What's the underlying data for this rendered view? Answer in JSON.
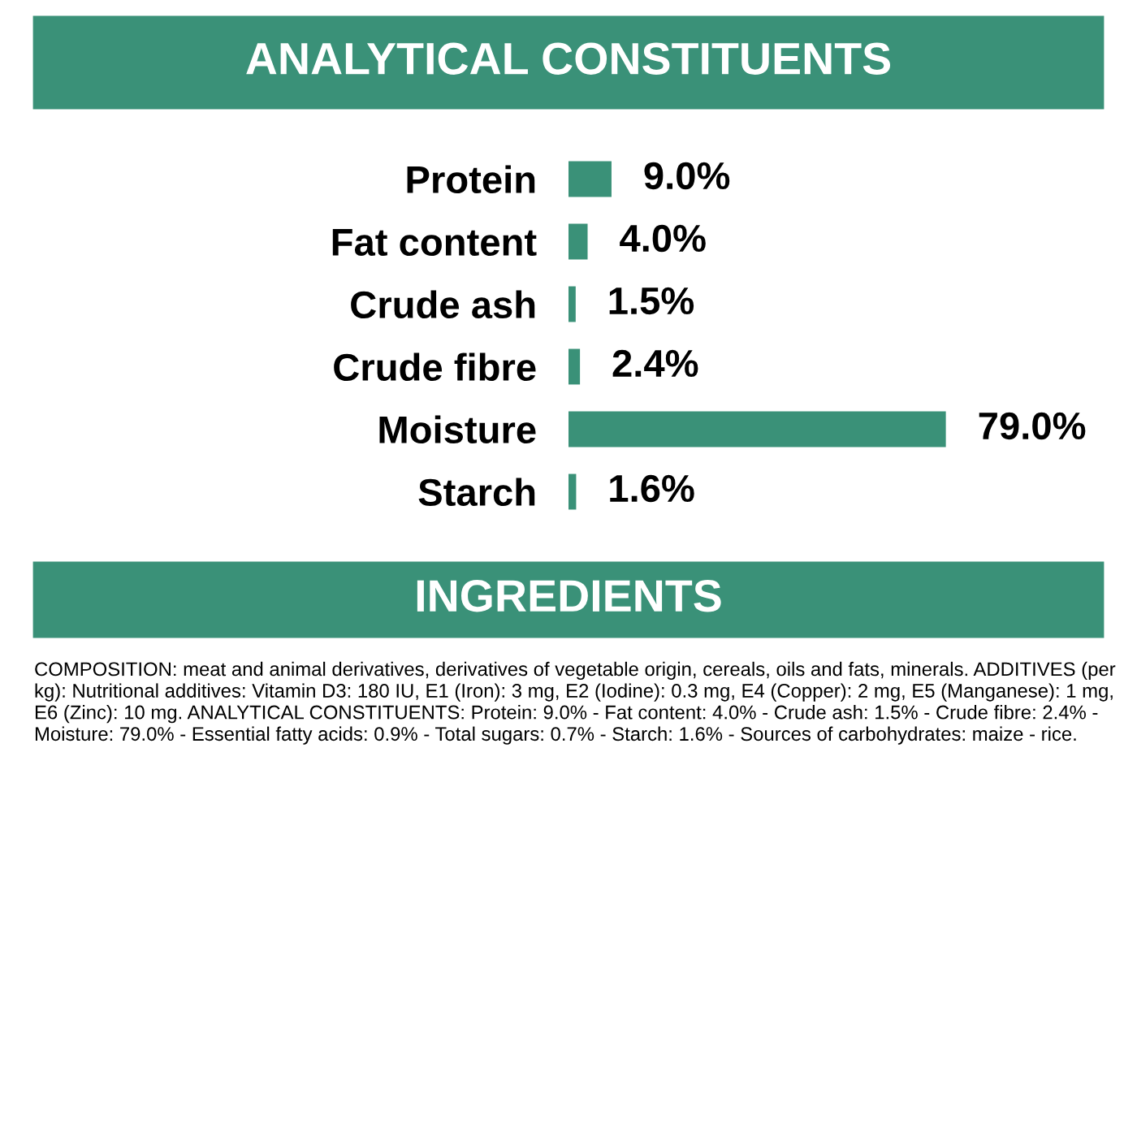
{
  "chart_data": {
    "type": "bar",
    "orientation": "horizontal",
    "title": "ANALYTICAL CONSTITUENTS",
    "categories": [
      "Protein",
      "Fat content",
      "Crude ash",
      "Crude fibre",
      "Moisture",
      "Starch"
    ],
    "values": [
      9.0,
      4.0,
      1.5,
      2.4,
      79.0,
      1.6
    ],
    "value_labels": [
      "9.0%",
      "4.0%",
      "1.5%",
      "2.4%",
      "79.0%",
      "1.6%"
    ],
    "color": "#3a9178",
    "annotations": [
      "INGREDIENTS",
      "COMPOSITION: meat and animal derivatives, derivatives of vegetable origin, cereals, oils and fats, minerals. ADDITIVES (per kg): Nutritional additives: Vitamin D3: 180 IU, E1 (Iron): 3 mg, E2 (Iodine): 0.3 mg, E4 (Copper): 2 mg, E5 (Manganese): 1 mg, E6 (Zinc): 10 mg. ANALYTICAL CONSTITUENTS: Protein: 9.0% - Fat content: 4.0% - Crude ash: 1.5% - Crude fibre: 2.4% - Moisture: 79.0% - Essential fatty acids: 0.9% - Total sugars: 0.7% - Starch: 1.6% - Sources of carbohydrates: maize - rice."
    ]
  }
}
